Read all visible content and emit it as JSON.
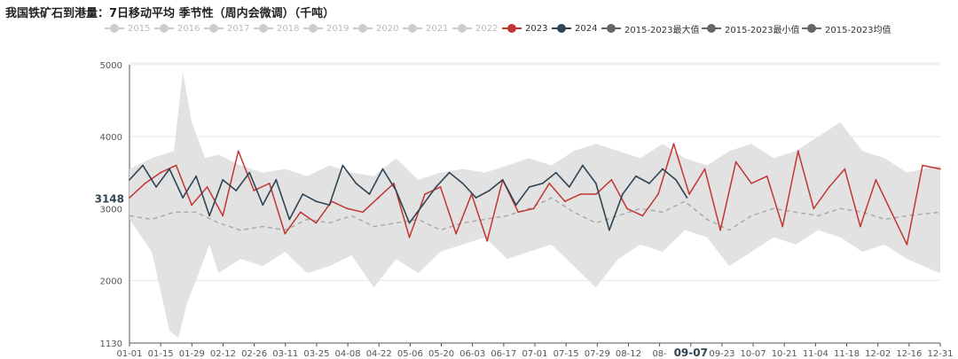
{
  "title": "我国铁矿石到港量：7日移动平均 季节性（周内会微调）（千吨）",
  "legend": [
    {
      "label": "2015",
      "color": "#cccccc",
      "active": false
    },
    {
      "label": "2016",
      "color": "#cccccc",
      "active": false
    },
    {
      "label": "2017",
      "color": "#cccccc",
      "active": false
    },
    {
      "label": "2018",
      "color": "#cccccc",
      "active": false
    },
    {
      "label": "2019",
      "color": "#cccccc",
      "active": false
    },
    {
      "label": "2020",
      "color": "#cccccc",
      "active": false
    },
    {
      "label": "2021",
      "color": "#cccccc",
      "active": false
    },
    {
      "label": "2022",
      "color": "#cccccc",
      "active": false
    },
    {
      "label": "2023",
      "color": "#c23531",
      "active": true
    },
    {
      "label": "2024",
      "color": "#2f4554",
      "active": true
    },
    {
      "label": "2015-2023最大值",
      "color": "#666666",
      "active": true
    },
    {
      "label": "2015-2023最小值",
      "color": "#666666",
      "active": true
    },
    {
      "label": "2015-2023均值",
      "color": "#666666",
      "active": true
    }
  ],
  "chart_data": {
    "type": "line",
    "title": "我国铁矿石到港量：7日移动平均 季节性（周内会微调）（千吨）",
    "y_ticks": [
      1130,
      2000,
      3000,
      4000,
      5000
    ],
    "ylim": [
      1130,
      5000
    ],
    "x_ticks": [
      "01-01",
      "01-15",
      "01-29",
      "02-12",
      "02-26",
      "03-11",
      "03-25",
      "04-08",
      "04-22",
      "05-06",
      "05-20",
      "06-03",
      "06-17",
      "07-01",
      "07-15",
      "07-29",
      "08-12",
      "08-",
      "09-07",
      "09-23",
      "10-07",
      "10-21",
      "11-04",
      "11-18",
      "12-02",
      "12-16",
      "12-31"
    ],
    "highlight_x": "09-07",
    "highlight_value": "3148",
    "grid": true,
    "legend_position": "top",
    "series": [
      {
        "name": "2023",
        "color": "#c23531",
        "style": "solid",
        "x": [
          0,
          7,
          14,
          21,
          28,
          35,
          42,
          49,
          56,
          63,
          70,
          77,
          84,
          91,
          98,
          105,
          112,
          119,
          126,
          133,
          140,
          147,
          154,
          161,
          168,
          175,
          182,
          189,
          196,
          203,
          210,
          217,
          224,
          231,
          238,
          245,
          252,
          259,
          266,
          273,
          280,
          287,
          294,
          301,
          308,
          315,
          322,
          329,
          336,
          343,
          350,
          357,
          365
        ],
        "values": [
          3150,
          3350,
          3500,
          3600,
          3050,
          3300,
          2900,
          3800,
          3250,
          3350,
          2650,
          2950,
          2800,
          3100,
          3000,
          2950,
          3150,
          3350,
          2600,
          3200,
          3300,
          2650,
          3200,
          2550,
          3400,
          2950,
          3000,
          3350,
          3100,
          3200,
          3200,
          3400,
          3000,
          2900,
          3200,
          3900,
          3200,
          3550,
          2700,
          3650,
          3350,
          3450,
          2750,
          3800,
          3000,
          3300,
          3550,
          2750,
          3400,
          2950,
          2500,
          3600,
          3550
        ]
      },
      {
        "name": "2024",
        "color": "#2f4554",
        "style": "solid",
        "x": [
          0,
          6,
          12,
          18,
          24,
          30,
          36,
          42,
          48,
          54,
          60,
          66,
          72,
          78,
          84,
          90,
          96,
          102,
          108,
          114,
          120,
          126,
          132,
          138,
          144,
          150,
          156,
          162,
          168,
          174,
          180,
          186,
          192,
          198,
          204,
          210,
          216,
          222,
          228,
          234,
          240,
          246,
          251
        ],
        "values": [
          3400,
          3600,
          3300,
          3550,
          3150,
          3450,
          2900,
          3400,
          3250,
          3500,
          3050,
          3400,
          2850,
          3200,
          3100,
          3050,
          3600,
          3350,
          3200,
          3550,
          3250,
          2800,
          3050,
          3300,
          3500,
          3350,
          3150,
          3250,
          3400,
          3050,
          3300,
          3350,
          3500,
          3300,
          3600,
          3350,
          2700,
          3200,
          3450,
          3350,
          3550,
          3400,
          3150
        ]
      },
      {
        "name": "2015-2023最大值",
        "color": "#dddddd",
        "style": "band-upper",
        "x": [
          0,
          10,
          20,
          24,
          28,
          34,
          40,
          50,
          60,
          70,
          80,
          90,
          100,
          110,
          120,
          130,
          140,
          150,
          160,
          170,
          180,
          190,
          200,
          210,
          220,
          230,
          240,
          250,
          260,
          270,
          280,
          290,
          300,
          310,
          320,
          330,
          340,
          350,
          365
        ],
        "values": [
          3550,
          3700,
          3800,
          4900,
          4200,
          3700,
          3750,
          3600,
          3500,
          3550,
          3450,
          3600,
          3500,
          3450,
          3700,
          3400,
          3500,
          3550,
          3500,
          3600,
          3700,
          3600,
          3800,
          3900,
          3800,
          3700,
          3900,
          3700,
          3600,
          3800,
          3900,
          3700,
          3800,
          4000,
          4200,
          3800,
          3700,
          3500,
          3600
        ]
      },
      {
        "name": "2015-2023最小值",
        "color": "#dddddd",
        "style": "band-lower",
        "x": [
          0,
          10,
          18,
          22,
          26,
          30,
          36,
          40,
          50,
          60,
          70,
          80,
          90,
          100,
          110,
          120,
          130,
          140,
          150,
          160,
          170,
          180,
          190,
          200,
          210,
          220,
          230,
          240,
          250,
          260,
          270,
          280,
          290,
          300,
          310,
          320,
          330,
          340,
          350,
          365
        ],
        "values": [
          2850,
          2400,
          1300,
          1200,
          1700,
          2000,
          2500,
          2100,
          2300,
          2200,
          2400,
          2100,
          2200,
          2350,
          1900,
          2300,
          2100,
          2400,
          2500,
          2600,
          2300,
          2400,
          2500,
          2200,
          1900,
          2300,
          2500,
          2400,
          2700,
          2600,
          2200,
          2400,
          2600,
          2500,
          2700,
          2600,
          2400,
          2500,
          2300,
          2100
        ]
      },
      {
        "name": "2015-2023均值",
        "color": "#999999",
        "style": "dashed",
        "x": [
          0,
          10,
          20,
          30,
          40,
          50,
          60,
          70,
          80,
          90,
          100,
          110,
          120,
          130,
          140,
          150,
          160,
          170,
          180,
          190,
          200,
          210,
          220,
          230,
          240,
          250,
          260,
          270,
          280,
          290,
          300,
          310,
          320,
          330,
          340,
          350,
          365
        ],
        "values": [
          2900,
          2850,
          2950,
          2950,
          2800,
          2700,
          2750,
          2700,
          2850,
          2800,
          2900,
          2750,
          2800,
          2850,
          2700,
          2800,
          2850,
          2900,
          3000,
          3150,
          2950,
          2800,
          2900,
          3000,
          2950,
          3100,
          2850,
          2700,
          2900,
          3000,
          2950,
          2900,
          3000,
          2950,
          2850,
          2900,
          2950
        ]
      }
    ]
  }
}
